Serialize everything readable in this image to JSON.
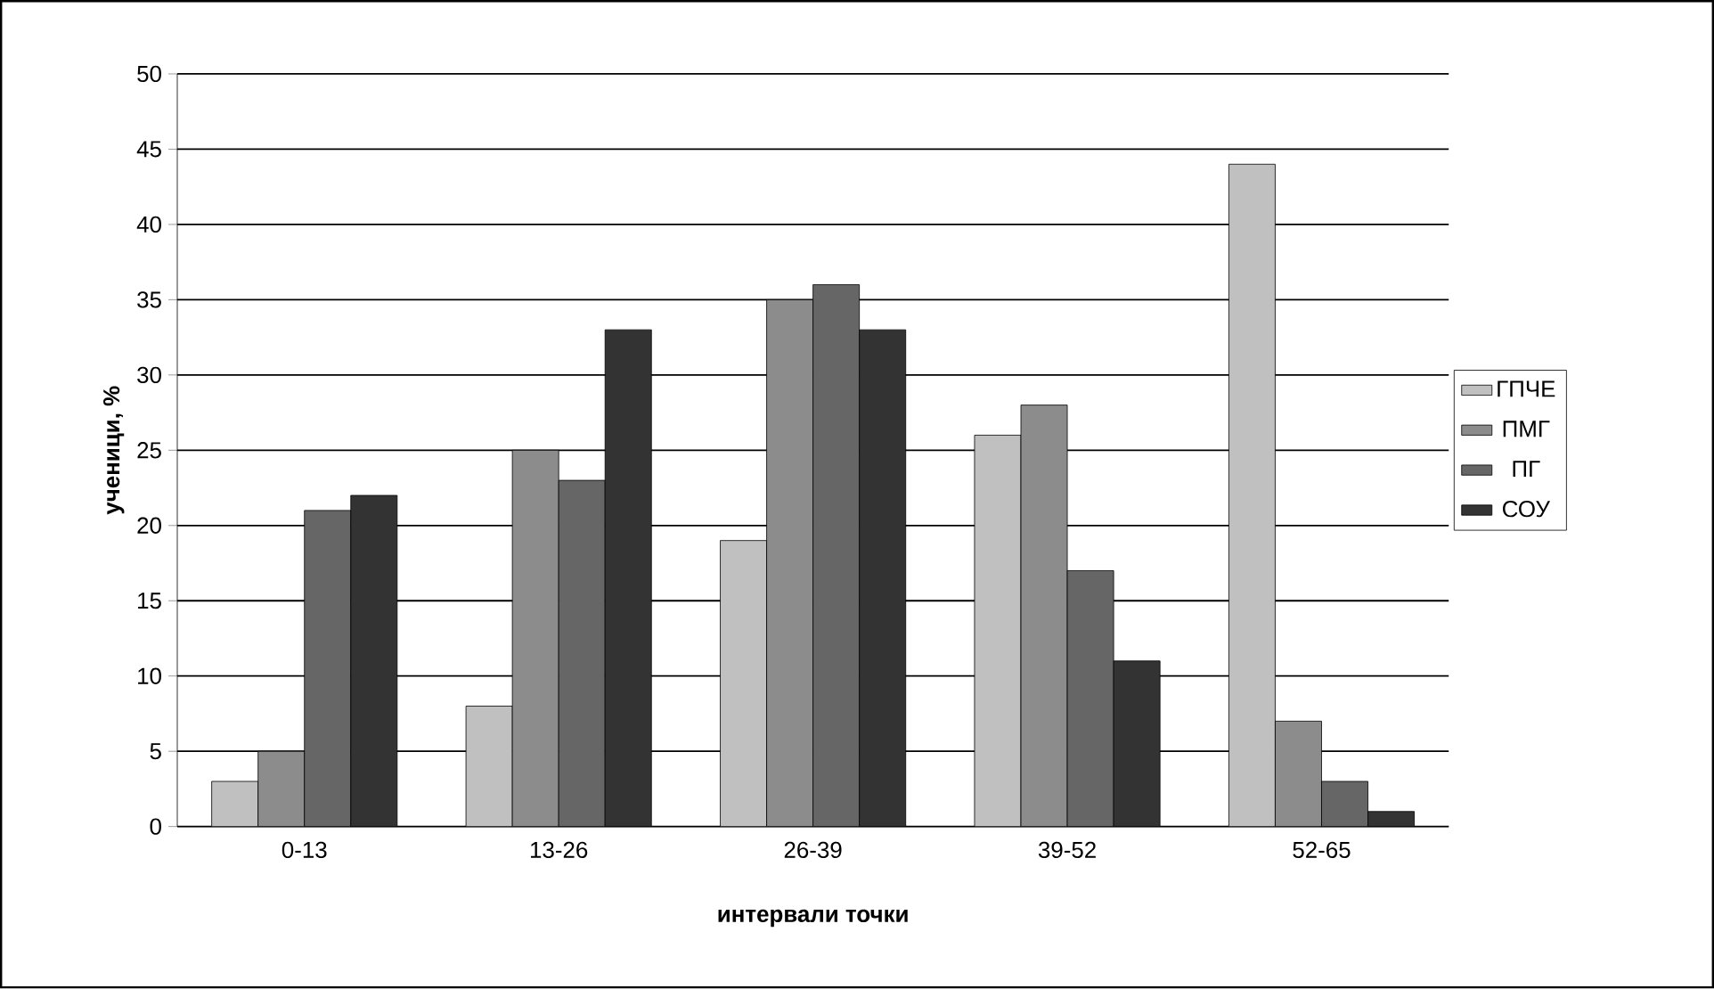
{
  "chart_data": {
    "type": "bar",
    "xlabel": "интервали точки",
    "ylabel": "ученици, %",
    "categories": [
      "0-13",
      "13-26",
      "26-39",
      "39-52",
      "52-65"
    ],
    "series": [
      {
        "name": "ГПЧЕ",
        "color": "#c0c0c0",
        "values": [
          3,
          8,
          19,
          26,
          44
        ]
      },
      {
        "name": "ПМГ",
        "color": "#8c8c8c",
        "values": [
          5,
          25,
          35,
          28,
          7
        ]
      },
      {
        "name": "ПГ",
        "color": "#666666",
        "values": [
          21,
          23,
          36,
          17,
          3
        ]
      },
      {
        "name": "СОУ",
        "color": "#333333",
        "values": [
          22,
          33,
          33,
          11,
          1
        ]
      }
    ],
    "ylim": [
      0,
      50
    ],
    "yticks": [
      0,
      5,
      10,
      15,
      20,
      25,
      30,
      35,
      40,
      45,
      50
    ],
    "grid": "y",
    "legend": "right"
  }
}
